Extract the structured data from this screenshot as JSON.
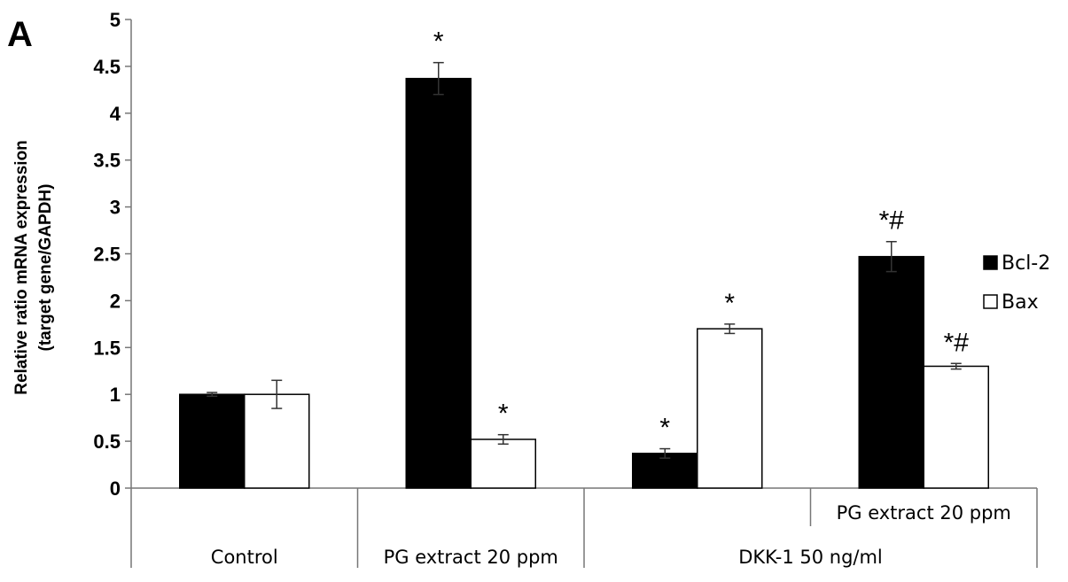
{
  "panel_label": "A",
  "chart_data": {
    "type": "bar",
    "ylabel_lines": [
      "Relative ratio mRNA expression",
      "(target gene/GAPDH)"
    ],
    "ylim": [
      0,
      5
    ],
    "yticks": [
      "0",
      "0.5",
      "1",
      "1.5",
      "2",
      "2.5",
      "3",
      "3.5",
      "4",
      "4.5",
      "5"
    ],
    "grid": false,
    "legend_position": "right",
    "series": [
      {
        "name": "Bcl-2",
        "color": "#000000",
        "values": [
          1.0,
          4.37,
          0.37,
          2.47
        ],
        "errors": [
          0.02,
          0.17,
          0.05,
          0.16
        ],
        "annotations": [
          "",
          "*",
          "*",
          "*#"
        ]
      },
      {
        "name": "Bax",
        "color": "#ffffff",
        "values": [
          1.0,
          0.52,
          1.7,
          1.3
        ],
        "errors": [
          0.15,
          0.05,
          0.05,
          0.03
        ],
        "annotations": [
          "",
          "*",
          "*",
          "*#"
        ]
      }
    ],
    "x_axis_rows": {
      "upper": [
        {
          "label": "",
          "span": [
            0,
            0
          ]
        },
        {
          "label": "",
          "span": [
            1,
            1
          ]
        },
        {
          "label": "",
          "span": [
            2,
            2
          ]
        },
        {
          "label": "PG extract 20 ppm",
          "span": [
            3,
            3
          ]
        }
      ],
      "lower": [
        {
          "label": "Control",
          "span": [
            0,
            0
          ]
        },
        {
          "label": "PG extract 20 ppm",
          "span": [
            1,
            1
          ]
        },
        {
          "label": "DKK-1 50 ng/ml",
          "span": [
            2,
            3
          ]
        }
      ]
    }
  }
}
